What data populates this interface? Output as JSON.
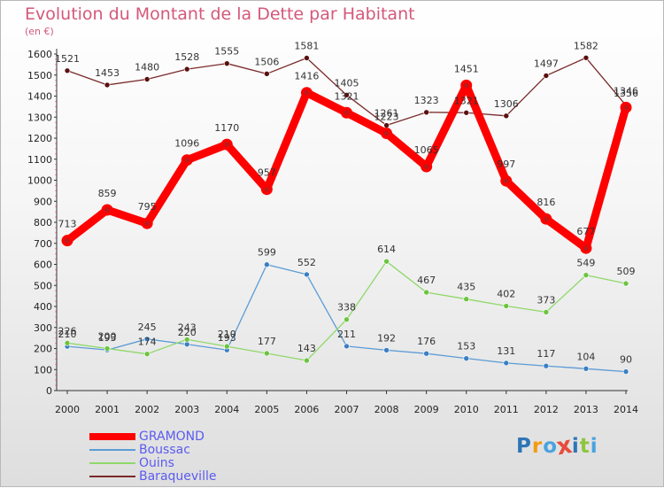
{
  "title": "Evolution du Montant de la Dette par Habitant",
  "subtitle": "(en €)",
  "chart_data": {
    "type": "line",
    "x": [
      2000,
      2001,
      2002,
      2003,
      2004,
      2005,
      2006,
      2007,
      2008,
      2009,
      2010,
      2011,
      2012,
      2013,
      2014
    ],
    "ylim": [
      0,
      1600
    ],
    "yticks": [
      0,
      100,
      200,
      300,
      400,
      500,
      600,
      700,
      800,
      900,
      1000,
      1100,
      1200,
      1300,
      1400,
      1500,
      1600
    ],
    "grid": false,
    "legend_position": "bottom-left",
    "series": [
      {
        "name": "GRAMOND",
        "color": "#ff0000",
        "marker_color": "#c01818",
        "values": [
          713,
          859,
          795,
          1096,
          1170,
          957,
          1416,
          1321,
          1223,
          1065,
          1451,
          997,
          816,
          677,
          1346
        ]
      },
      {
        "name": "Boussac",
        "color": "#5b9bd5",
        "marker_color": "#3a7fc4",
        "values": [
          210,
          193,
          245,
          220,
          193,
          599,
          552,
          211,
          192,
          176,
          153,
          131,
          117,
          104,
          90
        ]
      },
      {
        "name": "Ouins",
        "color": "#8fd86a",
        "marker_color": "#6cc43e",
        "values": [
          226,
          200,
          174,
          243,
          210,
          177,
          143,
          338,
          614,
          467,
          435,
          402,
          373,
          549,
          509
        ]
      },
      {
        "name": "Baraqueville",
        "color": "#7a2a2a",
        "marker_color": "#5a1010",
        "values": [
          1521,
          1453,
          1480,
          1528,
          1555,
          1506,
          1581,
          1405,
          1261,
          1323,
          1321,
          1306,
          1497,
          1582,
          1356
        ]
      }
    ]
  },
  "legend": [
    {
      "label": "GRAMOND",
      "color": "#ff0000"
    },
    {
      "label": "Boussac",
      "color": "#5b9bd5"
    },
    {
      "label": "Ouins",
      "color": "#8fd86a"
    },
    {
      "label": "Baraqueville",
      "color": "#7a2a2a"
    }
  ],
  "logo": {
    "text": "Proxiti",
    "letter_colors": [
      "#2e75b6",
      "#f39c12",
      "#4aa3df",
      "#e74c3c",
      "#2e75b6",
      "#8cc63f",
      "#4aa3df"
    ]
  }
}
